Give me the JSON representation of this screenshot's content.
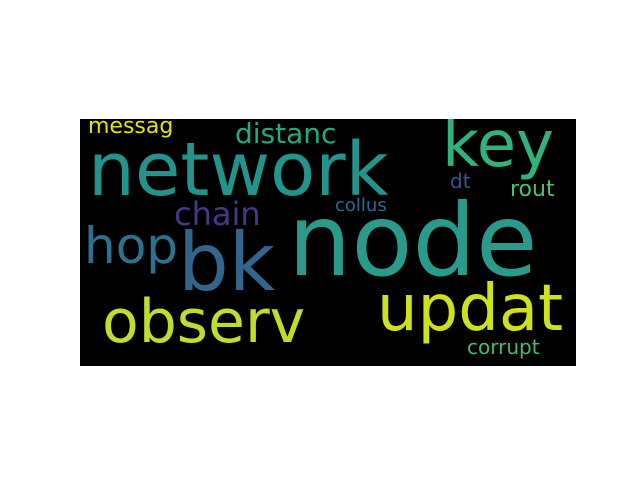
{
  "wordcloud": {
    "background": "#000000",
    "words": [
      {
        "text": "node",
        "color": "#2a9a8a"
      },
      {
        "text": "network",
        "color": "#22948c"
      },
      {
        "text": "key",
        "color": "#2eb37c"
      },
      {
        "text": "bk",
        "color": "#33658c"
      },
      {
        "text": "updat",
        "color": "#cde11d"
      },
      {
        "text": "observ",
        "color": "#bfdd2b"
      },
      {
        "text": "hop",
        "color": "#2c728e"
      },
      {
        "text": "chain",
        "color": "#443983"
      },
      {
        "text": "distanc",
        "color": "#24aa83"
      },
      {
        "text": "messag",
        "color": "#dde318"
      },
      {
        "text": "rout",
        "color": "#4ac16d"
      },
      {
        "text": "dt",
        "color": "#3a548c"
      },
      {
        "text": "collus",
        "color": "#31688e"
      },
      {
        "text": "corrupt",
        "color": "#3fbc73"
      }
    ]
  }
}
